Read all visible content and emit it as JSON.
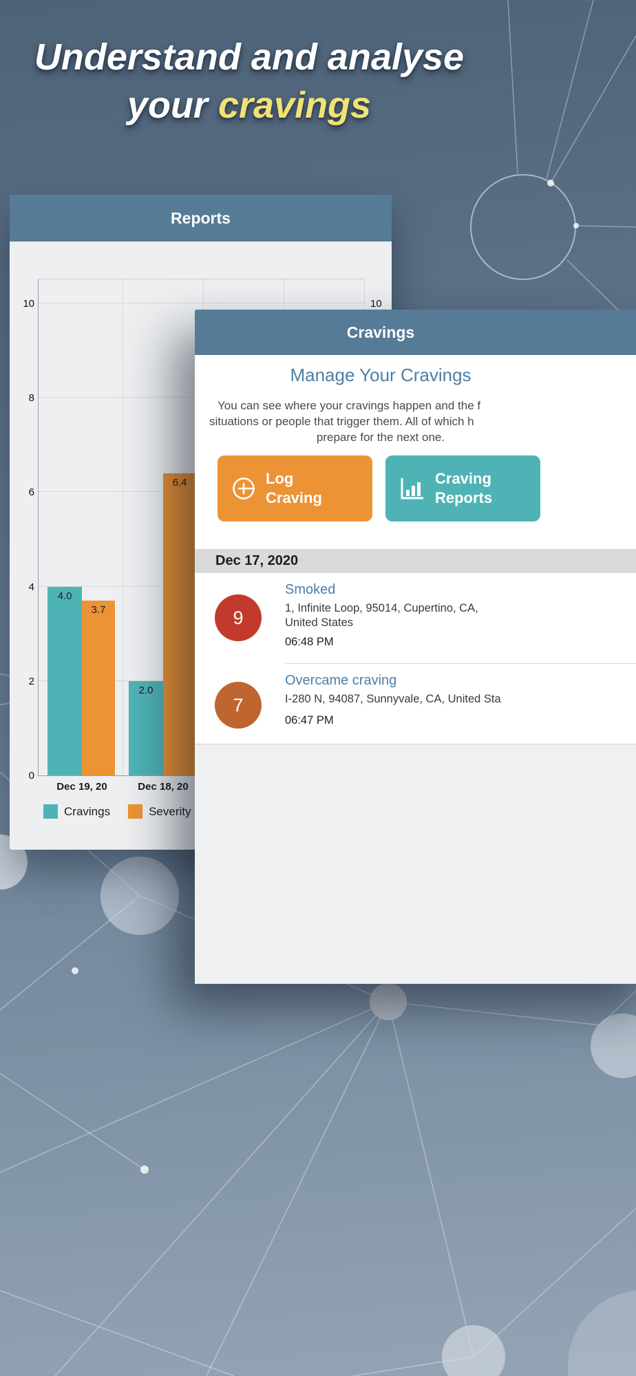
{
  "headline": {
    "line1": "Understand and analyse",
    "line2_prefix": "your ",
    "line2_highlight": "cravings"
  },
  "colors": {
    "header_bar": "#567b97",
    "teal": "#4fb3b5",
    "orange": "#ec9335",
    "heading_blue": "#4e7ea3",
    "entry_title_blue": "#4d7ea6",
    "badge_red": "#c23a2c",
    "badge_brown": "#bf6530",
    "highlight_yellow": "#f1e273"
  },
  "chart_data": {
    "type": "bar",
    "title": "",
    "categories": [
      "Dec 19, 20",
      "Dec 18, 20"
    ],
    "series": [
      {
        "name": "Cravings",
        "color": "#4fb3b5",
        "values": [
          4.0,
          2.0
        ]
      },
      {
        "name": "Severity",
        "color": "#ec9335",
        "values": [
          3.7,
          6.4
        ]
      }
    ],
    "ylim": [
      0,
      10
    ],
    "yticks": [
      0,
      2,
      4,
      6,
      8,
      10
    ],
    "grid": true,
    "legend_position": "bottom",
    "value_labels": [
      "4.0",
      "3.7",
      "2.0",
      "6.4"
    ]
  },
  "reports_screen": {
    "title": "Reports"
  },
  "cravings_screen": {
    "title": "Cravings",
    "heading": "Manage Your Cravings",
    "description_lines": [
      "You can see where your cravings happen and the f",
      "situations or people that trigger them. All of which h",
      "prepare for the next one."
    ],
    "buttons": [
      {
        "icon": "plus-circle-icon",
        "label_line1": "Log",
        "label_line2": "Craving"
      },
      {
        "icon": "bar-chart-icon",
        "label_line1": "Craving",
        "label_line2": "Reports"
      }
    ],
    "section_header": "Dec 17, 2020",
    "entries": [
      {
        "count": "9",
        "title": "Smoked",
        "address_lines": [
          "1, Infinite Loop, 95014, Cupertino, CA,",
          "United States"
        ],
        "time": "06:48 PM"
      },
      {
        "count": "7",
        "title": "Overcame craving",
        "address_lines": [
          "I-280 N, 94087, Sunnyvale, CA, United Sta"
        ],
        "time": "06:47 PM"
      }
    ]
  }
}
